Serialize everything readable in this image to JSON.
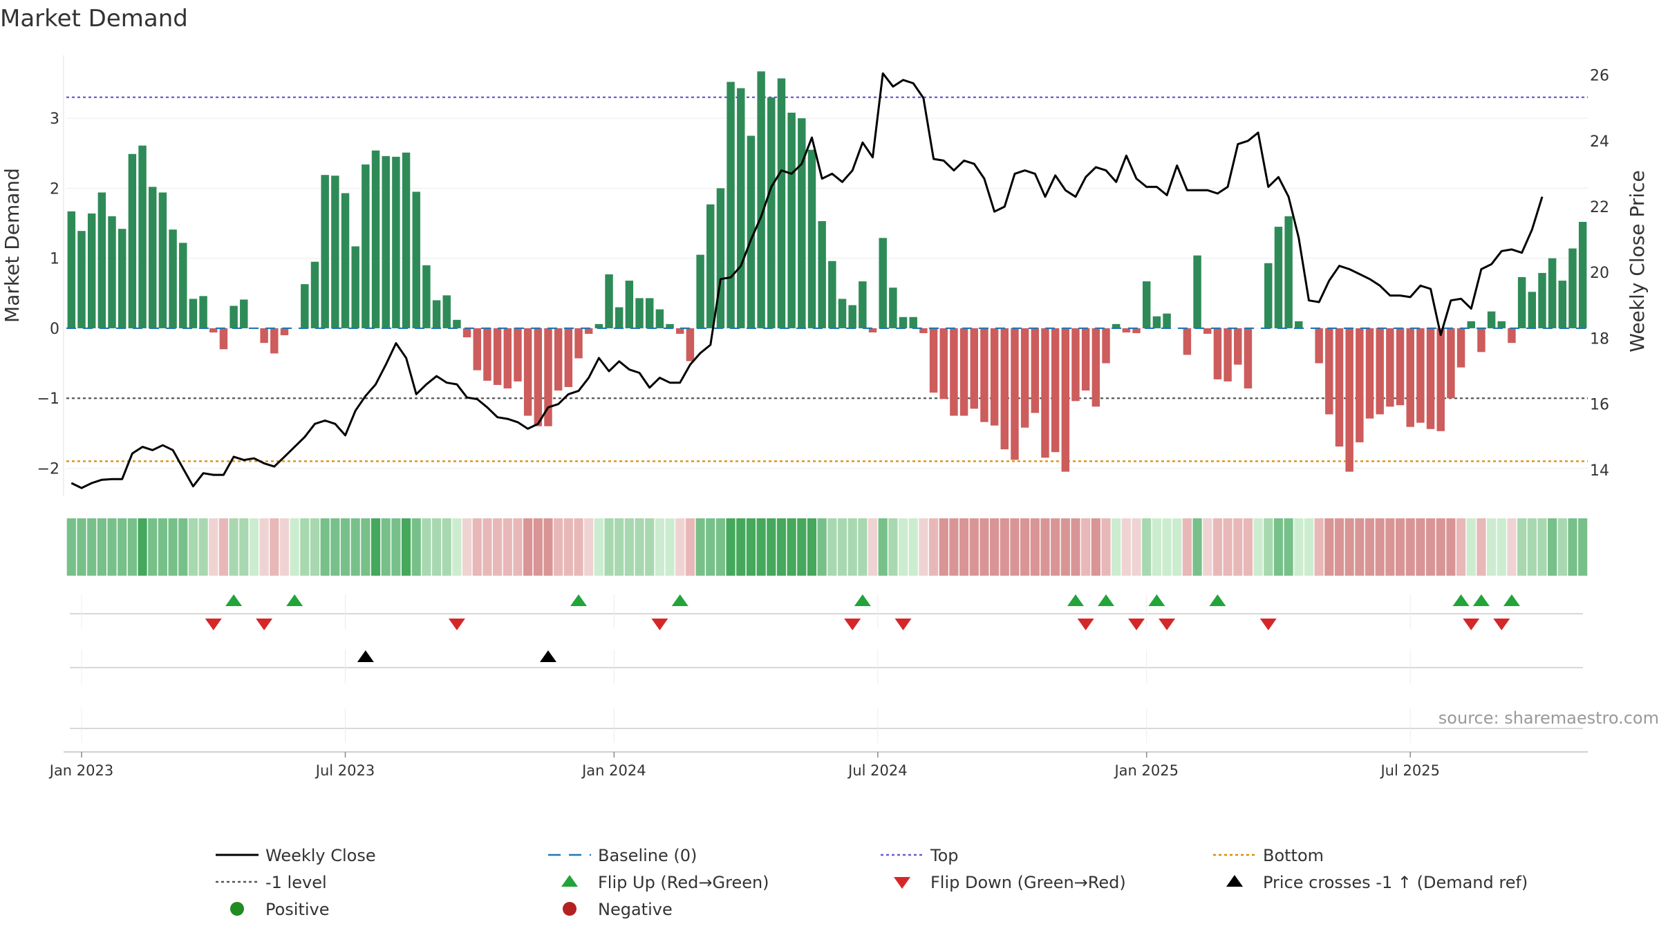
{
  "chart_data": {
    "type": "bar+line",
    "title": "Market Demand",
    "ylabel_left": "Market Demand",
    "ylabel_right": "Weekly Close Price",
    "ylim_left": [
      -2.4,
      3.9
    ],
    "ylim_right": [
      13.2,
      26.6
    ],
    "yticks_left": [
      -2,
      -1,
      0,
      1,
      2,
      3
    ],
    "yticks_left_labels": [
      "−2",
      "−1",
      "0",
      "1",
      "2",
      "3"
    ],
    "yticks_right": [
      14,
      16,
      18,
      20,
      22,
      24,
      26
    ],
    "xticks": [
      {
        "label": "Jan 2023",
        "week": 1
      },
      {
        "label": "Jul 2023",
        "week": 27
      },
      {
        "label": "Jan 2024",
        "week": 53.5
      },
      {
        "label": "Jul 2024",
        "week": 79.5
      },
      {
        "label": "Jan 2025",
        "week": 106
      },
      {
        "label": "Jul 2025",
        "week": 132
      }
    ],
    "reference_lines": {
      "top": 3.3,
      "bottom": -1.9,
      "minus_one": -1,
      "baseline": 0
    },
    "demand": [
      1.67,
      1.39,
      1.64,
      1.94,
      1.6,
      1.42,
      2.49,
      2.61,
      2.02,
      1.94,
      1.41,
      1.22,
      0.42,
      0.46,
      -0.06,
      -0.3,
      0.32,
      0.41,
      0,
      -0.21,
      -0.36,
      -0.1,
      0,
      0.63,
      0.95,
      2.19,
      2.18,
      1.93,
      1.17,
      2.34,
      2.54,
      2.46,
      2.45,
      2.51,
      1.95,
      0.9,
      0.4,
      0.47,
      0.12,
      -0.13,
      -0.6,
      -0.75,
      -0.81,
      -0.86,
      -0.76,
      -1.25,
      -1.4,
      -1.4,
      -0.89,
      -0.84,
      -0.43,
      -0.08,
      0.06,
      0.77,
      0.3,
      0.68,
      0.43,
      0.43,
      0.27,
      0.06,
      -0.08,
      -0.47,
      1.05,
      1.77,
      2.0,
      3.52,
      3.43,
      2.75,
      3.67,
      3.3,
      3.57,
      3.08,
      3.0,
      2.55,
      1.53,
      0.96,
      0.42,
      0.33,
      0.67,
      -0.06,
      1.29,
      0.58,
      0.16,
      0.16,
      -0.07,
      -0.92,
      -1.01,
      -1.25,
      -1.25,
      -1.15,
      -1.34,
      -1.39,
      -1.73,
      -1.88,
      -1.42,
      -1.21,
      -1.85,
      -1.77,
      -2.05,
      -1.04,
      -0.89,
      -1.12,
      -0.5,
      0.06,
      -0.06,
      -0.07,
      0.67,
      0.17,
      0.21,
      0,
      -0.38,
      1.04,
      -0.08,
      -0.73,
      -0.76,
      -0.52,
      -0.86,
      0,
      0.93,
      1.45,
      1.6,
      0.1,
      0,
      -0.5,
      -1.23,
      -1.69,
      -2.05,
      -1.63,
      -1.29,
      -1.23,
      -1.12,
      -1.1,
      -1.41,
      -1.35,
      -1.44,
      -1.47,
      -1.0,
      -0.56,
      0.1,
      -0.34,
      0.24,
      0.1,
      -0.21,
      0.73,
      0.52,
      0.79,
      1.0,
      0.68,
      1.14,
      1.52
    ],
    "weekly_close": [
      13.6,
      13.45,
      13.6,
      13.7,
      13.72,
      13.72,
      14.5,
      14.7,
      14.6,
      14.75,
      14.6,
      14.05,
      13.5,
      13.9,
      13.85,
      13.85,
      14.4,
      14.3,
      14.35,
      14.2,
      14.1,
      14.4,
      14.7,
      15.0,
      15.4,
      15.5,
      15.4,
      15.05,
      15.8,
      16.25,
      16.6,
      17.2,
      17.85,
      17.4,
      16.3,
      16.6,
      16.85,
      16.65,
      16.6,
      16.2,
      16.15,
      15.9,
      15.6,
      15.55,
      15.45,
      15.25,
      15.4,
      15.9,
      16.0,
      16.3,
      16.4,
      16.8,
      17.4,
      17.0,
      17.3,
      17.05,
      16.95,
      16.5,
      16.8,
      16.65,
      16.65,
      17.2,
      17.55,
      17.8,
      19.8,
      19.85,
      20.2,
      21.0,
      21.7,
      22.6,
      23.1,
      23.0,
      23.3,
      24.1,
      22.85,
      23.0,
      22.75,
      23.1,
      23.95,
      23.5,
      26.05,
      25.65,
      25.85,
      25.75,
      25.3,
      23.45,
      23.4,
      23.1,
      23.4,
      23.3,
      22.85,
      21.85,
      22.0,
      23.0,
      23.1,
      23.0,
      22.3,
      22.95,
      22.5,
      22.3,
      22.9,
      23.2,
      23.1,
      22.75,
      23.55,
      22.85,
      22.6,
      22.6,
      22.35,
      23.25,
      22.5,
      22.5,
      22.5,
      22.4,
      22.6,
      23.9,
      24.0,
      24.25,
      22.6,
      22.9,
      22.3,
      21.05,
      19.15,
      19.1,
      19.75,
      20.2,
      20.1,
      19.95,
      19.8,
      19.6,
      19.3,
      19.3,
      19.25,
      19.6,
      19.5,
      18.1,
      19.15,
      19.2,
      18.9,
      20.1,
      20.25,
      20.65,
      20.7,
      20.6,
      21.3,
      22.3
    ],
    "strip_colors": {
      "strong_green": "#46a85c",
      "green": "#78c08a",
      "light_green": "#a8d8b0",
      "pale_green": "#cceccf",
      "pale_red": "#efd3d3",
      "light_red": "#e8b8b8",
      "red": "#d99595"
    },
    "flip_up_weeks": [
      16,
      22,
      50,
      60,
      78,
      99,
      102,
      107,
      113,
      137,
      139,
      142
    ],
    "flip_down_weeks": [
      14,
      19,
      38,
      58,
      77,
      82,
      100,
      105,
      108,
      118,
      138,
      141
    ],
    "price_cross_weeks": [
      29,
      47
    ],
    "colors": {
      "positive_bar": "#2e8b57",
      "negative_bar": "#cd5c5c",
      "close_line": "#000000",
      "baseline": "#1f77b4",
      "top": "#6a5acd",
      "bottom": "#e08a00",
      "minus_one": "#555555",
      "flip_up": "#22a43a",
      "flip_down": "#d62728",
      "cross": "#000000",
      "positive_dot": "#228b22",
      "negative_dot": "#b22222"
    },
    "legend": [
      {
        "label": "Weekly Close",
        "kind": "line-solid",
        "color": "#000000"
      },
      {
        "label": "Baseline (0)",
        "kind": "line-dashed",
        "color": "#1f77b4"
      },
      {
        "label": "Top",
        "kind": "line-dotted",
        "color": "#6a5acd"
      },
      {
        "label": "Bottom",
        "kind": "line-dotted",
        "color": "#e08a00"
      },
      {
        "label": "-1 level",
        "kind": "line-dotted",
        "color": "#555555"
      },
      {
        "label": "Flip Up (Red→Green)",
        "kind": "tri-up",
        "color": "#22a43a"
      },
      {
        "label": "Flip Down (Green→Red)",
        "kind": "tri-down",
        "color": "#d62728"
      },
      {
        "label": "Price crosses -1 ↑ (Demand ref)",
        "kind": "tri-up",
        "color": "#000000"
      },
      {
        "label": "Positive",
        "kind": "dot",
        "color": "#228b22"
      },
      {
        "label": "Negative",
        "kind": "dot",
        "color": "#b22222"
      }
    ],
    "source": "source: sharemaestro.com"
  }
}
